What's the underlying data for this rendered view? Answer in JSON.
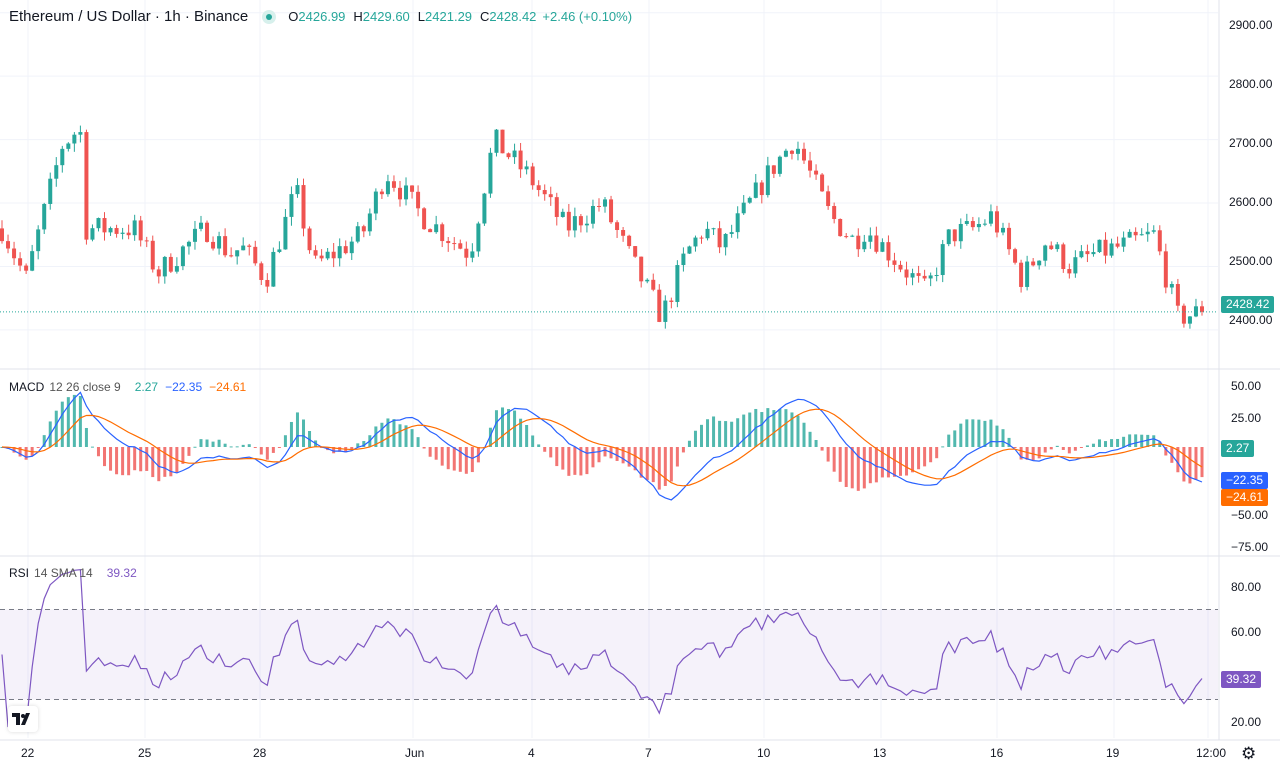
{
  "header": {
    "title": "Ethereum / US Dollar · 1h · Binance",
    "o_label": "O",
    "o": "2426.99",
    "h_label": "H",
    "h": "2429.60",
    "l_label": "L",
    "l": "2421.29",
    "c_label": "C",
    "c": "2428.42",
    "change": "+2.46 (+0.10%)"
  },
  "price_axis": {
    "ticks": [
      "2900.00",
      "2800.00",
      "2700.00",
      "2600.00",
      "2500.00",
      "2400.00"
    ],
    "last": "2428.42"
  },
  "macd": {
    "label": "MACD",
    "params": "12 26 close 9",
    "v1": "2.27",
    "v2": "−22.35",
    "v3": "−24.61",
    "ticks": [
      "50.00",
      "25.00",
      "−50.00",
      "−75.00"
    ]
  },
  "rsi": {
    "label": "RSI",
    "params": "14 SMA 14",
    "value": "39.32",
    "ticks": [
      "80.00",
      "60.00",
      "20.00"
    ]
  },
  "time_axis": {
    "labels": [
      "22",
      "25",
      "28",
      "Jun",
      "4",
      "7",
      "10",
      "13",
      "16",
      "19",
      "12:00"
    ]
  },
  "colors": {
    "up": "#26a69a",
    "down": "#ef5350",
    "macd": "#2962ff",
    "signal": "#ff6d00",
    "rsi": "#7e57c2"
  },
  "icons": {
    "logo": "tradingview-logo-icon",
    "settings": "gear-icon"
  },
  "chart_data": {
    "type": "candlestick",
    "interval": "1h",
    "price_range": [
      2340,
      2920
    ],
    "price_path_x": [
      0,
      0.02,
      0.05,
      0.065,
      0.07,
      0.11,
      0.13,
      0.17,
      0.19,
      0.2,
      0.22,
      0.245,
      0.26,
      0.3,
      0.32,
      0.35,
      0.39,
      0.41,
      0.44,
      0.47,
      0.5,
      0.53,
      0.55,
      0.57,
      0.585,
      0.6,
      0.64,
      0.66,
      0.69,
      0.71,
      0.72,
      0.735,
      0.77,
      0.79,
      0.81,
      0.825,
      0.84,
      0.85,
      0.87,
      0.89,
      0.91,
      0.93,
      0.96,
      0.98,
      1.0
    ],
    "price_path_y": [
      2560,
      2480,
      2690,
      2720,
      2560,
      2560,
      2490,
      2560,
      2520,
      2530,
      2480,
      2620,
      2500,
      2550,
      2650,
      2580,
      2520,
      2700,
      2640,
      2560,
      2600,
      2490,
      2420,
      2520,
      2560,
      2530,
      2650,
      2700,
      2580,
      2540,
      2560,
      2530,
      2460,
      2550,
      2560,
      2580,
      2520,
      2480,
      2540,
      2500,
      2520,
      2530,
      2550,
      2420,
      2428
    ],
    "last_price": 2428.42
  }
}
